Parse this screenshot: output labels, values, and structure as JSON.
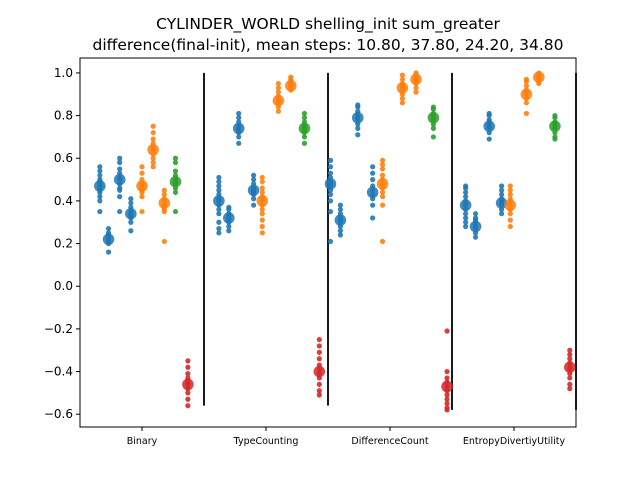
{
  "chart_data": {
    "type": "scatter",
    "title": "CYLINDER_WORLD shelling_init sum_greater",
    "subtitle": "difference(final-init), mean steps: 10.80, 37.80, 24.20, 34.80",
    "categories": [
      "Binary",
      "TypeCounting",
      "DifferenceCount",
      "EntropyDivertiyUtility"
    ],
    "y_ticks": [
      "1.0",
      "0.8",
      "0.6",
      "0.4",
      "0.2",
      "0.0",
      "−0.2",
      "−0.4",
      "−0.6"
    ],
    "ylim": [
      -0.66,
      1.07
    ],
    "grid": false,
    "colors": {
      "blue": "#1f77b4",
      "orange": "#ff7f0e",
      "green": "#2ca02c",
      "red": "#d62728"
    },
    "groups": [
      {
        "category": "Binary",
        "series": [
          {
            "offset": -0.34,
            "color": "blue",
            "mean": 0.47,
            "points": [
              0.56,
              0.54,
              0.52,
              0.5,
              0.49,
              0.48,
              0.47,
              0.46,
              0.45,
              0.44,
              0.42,
              0.4,
              0.35
            ]
          },
          {
            "offset": -0.27,
            "color": "blue",
            "mean": 0.22,
            "points": [
              0.27,
              0.25,
              0.24,
              0.23,
              0.22,
              0.21,
              0.2,
              0.16
            ]
          },
          {
            "offset": -0.18,
            "color": "blue",
            "mean": 0.5,
            "points": [
              0.6,
              0.58,
              0.55,
              0.53,
              0.51,
              0.5,
              0.48,
              0.46,
              0.45,
              0.42,
              0.35
            ]
          },
          {
            "offset": -0.09,
            "color": "blue",
            "mean": 0.34,
            "points": [
              0.41,
              0.39,
              0.37,
              0.35,
              0.34,
              0.33,
              0.32,
              0.3,
              0.26
            ]
          },
          {
            "offset": 0.0,
            "color": "orange",
            "mean": 0.47,
            "points": [
              0.56,
              0.53,
              0.5,
              0.48,
              0.47,
              0.46,
              0.45,
              0.44,
              0.42,
              0.35
            ]
          },
          {
            "offset": 0.09,
            "color": "orange",
            "mean": 0.64,
            "points": [
              0.75,
              0.72,
              0.69,
              0.67,
              0.65,
              0.64,
              0.62,
              0.6,
              0.58,
              0.56
            ]
          },
          {
            "offset": 0.18,
            "color": "orange",
            "mean": 0.39,
            "points": [
              0.45,
              0.43,
              0.41,
              0.4,
              0.38,
              0.37,
              0.36,
              0.35,
              0.21
            ]
          },
          {
            "offset": 0.27,
            "color": "green",
            "mean": 0.49,
            "points": [
              0.6,
              0.58,
              0.54,
              0.52,
              0.5,
              0.49,
              0.48,
              0.46,
              0.44,
              0.35
            ]
          },
          {
            "offset": 0.37,
            "color": "red",
            "mean": -0.46,
            "points": [
              -0.35,
              -0.38,
              -0.41,
              -0.43,
              -0.45,
              -0.46,
              -0.48,
              -0.5,
              -0.53,
              -0.56
            ]
          }
        ]
      },
      {
        "category": "TypeCounting",
        "series": [
          {
            "offset": -0.38,
            "color": "blue",
            "mean": 0.4,
            "points": [
              0.51,
              0.49,
              0.47,
              0.45,
              0.43,
              0.41,
              0.4,
              0.38,
              0.36,
              0.34,
              0.3,
              0.27,
              0.25
            ]
          },
          {
            "offset": -0.3,
            "color": "blue",
            "mean": 0.32,
            "points": [
              0.37,
              0.36,
              0.34,
              0.33,
              0.32,
              0.31,
              0.3,
              0.28,
              0.26
            ]
          },
          {
            "offset": -0.22,
            "color": "blue",
            "mean": 0.74,
            "points": [
              0.81,
              0.79,
              0.77,
              0.75,
              0.74,
              0.73,
              0.72,
              0.7,
              0.67
            ]
          },
          {
            "offset": -0.1,
            "color": "blue",
            "mean": 0.45,
            "points": [
              0.52,
              0.5,
              0.48,
              0.46,
              0.45,
              0.44,
              0.43,
              0.41,
              0.38
            ]
          },
          {
            "offset": -0.03,
            "color": "orange",
            "mean": 0.4,
            "points": [
              0.51,
              0.49,
              0.46,
              0.44,
              0.42,
              0.4,
              0.38,
              0.36,
              0.34,
              0.31,
              0.28,
              0.25
            ]
          },
          {
            "offset": 0.1,
            "color": "orange",
            "mean": 0.87,
            "points": [
              0.95,
              0.93,
              0.91,
              0.89,
              0.88,
              0.87,
              0.86,
              0.84,
              0.82
            ]
          },
          {
            "offset": 0.2,
            "color": "orange",
            "mean": 0.94,
            "points": [
              0.98,
              0.97,
              0.96,
              0.95,
              0.94,
              0.93,
              0.92
            ]
          },
          {
            "offset": 0.31,
            "color": "green",
            "mean": 0.74,
            "points": [
              0.81,
              0.79,
              0.77,
              0.75,
              0.74,
              0.73,
              0.72,
              0.7,
              0.67
            ]
          },
          {
            "offset": 0.43,
            "color": "red",
            "mean": -0.4,
            "points": [
              -0.25,
              -0.28,
              -0.31,
              -0.34,
              -0.37,
              -0.39,
              -0.41,
              -0.43,
              -0.46,
              -0.49,
              -0.51
            ]
          }
        ]
      },
      {
        "category": "DifferenceCount",
        "series": [
          {
            "offset": -0.48,
            "color": "blue",
            "mean": 0.48,
            "points": [
              0.59,
              0.56,
              0.53,
              0.51,
              0.49,
              0.48,
              0.47,
              0.45,
              0.43,
              0.4,
              0.35,
              0.21
            ]
          },
          {
            "offset": -0.4,
            "color": "blue",
            "mean": 0.31,
            "points": [
              0.38,
              0.36,
              0.34,
              0.32,
              0.31,
              0.3,
              0.28,
              0.26,
              0.24
            ]
          },
          {
            "offset": -0.26,
            "color": "blue",
            "mean": 0.79,
            "points": [
              0.85,
              0.84,
              0.82,
              0.8,
              0.79,
              0.78,
              0.76,
              0.74,
              0.71
            ]
          },
          {
            "offset": -0.14,
            "color": "blue",
            "mean": 0.44,
            "points": [
              0.56,
              0.53,
              0.5,
              0.47,
              0.45,
              0.43,
              0.41,
              0.38,
              0.32
            ]
          },
          {
            "offset": -0.06,
            "color": "orange",
            "mean": 0.48,
            "points": [
              0.59,
              0.57,
              0.55,
              0.52,
              0.5,
              0.48,
              0.46,
              0.44,
              0.42,
              0.38,
              0.21
            ]
          },
          {
            "offset": 0.1,
            "color": "orange",
            "mean": 0.93,
            "points": [
              0.99,
              0.97,
              0.95,
              0.94,
              0.93,
              0.92,
              0.9,
              0.88,
              0.86
            ]
          },
          {
            "offset": 0.21,
            "color": "orange",
            "mean": 0.97,
            "points": [
              1.0,
              0.99,
              0.98,
              0.97,
              0.96,
              0.95,
              0.93,
              0.91
            ]
          },
          {
            "offset": 0.35,
            "color": "green",
            "mean": 0.79,
            "points": [
              0.84,
              0.83,
              0.81,
              0.8,
              0.79,
              0.78,
              0.76,
              0.74,
              0.7
            ]
          },
          {
            "offset": 0.46,
            "color": "red",
            "mean": -0.47,
            "points": [
              -0.21,
              -0.4,
              -0.43,
              -0.45,
              -0.47,
              -0.49,
              -0.51,
              -0.53,
              -0.55,
              -0.57,
              -0.58
            ]
          }
        ]
      },
      {
        "category": "EntropyDivertiyUtility",
        "series": [
          {
            "offset": -0.39,
            "color": "blue",
            "mean": 0.38,
            "points": [
              0.47,
              0.46,
              0.44,
              0.42,
              0.4,
              0.39,
              0.38,
              0.36,
              0.34,
              0.32,
              0.3,
              0.28
            ]
          },
          {
            "offset": -0.31,
            "color": "blue",
            "mean": 0.28,
            "points": [
              0.34,
              0.32,
              0.31,
              0.3,
              0.29,
              0.28,
              0.27,
              0.25,
              0.23
            ]
          },
          {
            "offset": -0.2,
            "color": "blue",
            "mean": 0.75,
            "points": [
              0.81,
              0.8,
              0.78,
              0.77,
              0.76,
              0.75,
              0.74,
              0.72,
              0.69
            ]
          },
          {
            "offset": -0.1,
            "color": "blue",
            "mean": 0.39,
            "points": [
              0.47,
              0.45,
              0.43,
              0.41,
              0.4,
              0.39,
              0.38,
              0.36,
              0.34
            ]
          },
          {
            "offset": -0.03,
            "color": "orange",
            "mean": 0.38,
            "points": [
              0.47,
              0.45,
              0.43,
              0.41,
              0.4,
              0.39,
              0.38,
              0.36,
              0.34,
              0.31,
              0.28
            ]
          },
          {
            "offset": 0.1,
            "color": "orange",
            "mean": 0.9,
            "points": [
              0.97,
              0.96,
              0.94,
              0.92,
              0.91,
              0.9,
              0.88,
              0.86,
              0.81
            ]
          },
          {
            "offset": 0.2,
            "color": "orange",
            "mean": 0.98,
            "points": [
              1.0,
              0.99,
              0.98,
              0.97,
              0.96,
              0.95
            ]
          },
          {
            "offset": 0.33,
            "color": "green",
            "mean": 0.75,
            "points": [
              0.8,
              0.79,
              0.77,
              0.76,
              0.75,
              0.74,
              0.72,
              0.7,
              0.69
            ]
          },
          {
            "offset": 0.45,
            "color": "red",
            "mean": -0.38,
            "points": [
              -0.3,
              -0.32,
              -0.34,
              -0.36,
              -0.38,
              -0.39,
              -0.41,
              -0.43,
              -0.46,
              -0.48
            ]
          }
        ]
      }
    ],
    "separators": [
      {
        "after_category": "Binary",
        "y_range": [
          -0.56,
          1.0
        ]
      },
      {
        "after_category": "TypeCounting",
        "y_range": [
          -0.56,
          1.0
        ]
      },
      {
        "after_category": "DifferenceCount",
        "y_range": [
          -0.58,
          1.0
        ]
      },
      {
        "after_category": "EntropyDivertiyUtility",
        "y_range": [
          -0.58,
          1.0
        ]
      }
    ]
  }
}
